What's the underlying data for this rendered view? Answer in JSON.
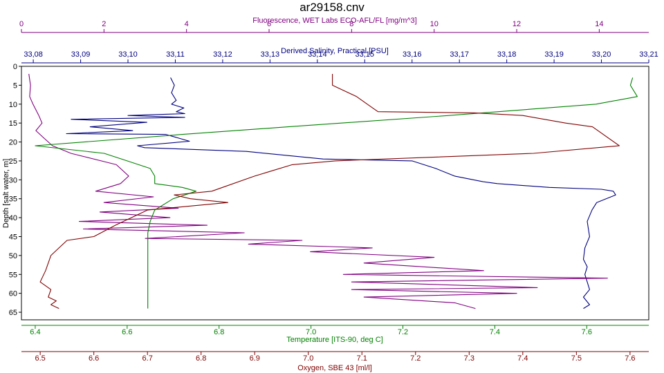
{
  "chart_data": {
    "type": "line",
    "title": "ar29158.cnv",
    "y_axis": {
      "label": "Depth [salt water, m]",
      "range": [
        0,
        67
      ],
      "inverted": true,
      "ticks": [
        0,
        5,
        10,
        15,
        20,
        25,
        30,
        35,
        40,
        45,
        50,
        55,
        60,
        65
      ]
    },
    "x_axes": [
      {
        "id": "fluorescence",
        "label": "Fluorescence, WET Labs ECO-AFL/FL [mg/m^3]",
        "position": "top",
        "range": [
          0,
          15.2
        ],
        "ticks": [
          0,
          2,
          4,
          6,
          8,
          10,
          12,
          14
        ],
        "tick_labels": [
          "0",
          "2",
          "4",
          "6",
          "8",
          "10",
          "12",
          "14"
        ],
        "color": "#800080"
      },
      {
        "id": "salinity",
        "label": "Derived Salinity, Practical [PSU]",
        "position": "top",
        "range": [
          33.0775,
          33.21
        ],
        "ticks": [
          33.08,
          33.09,
          33.1,
          33.11,
          33.12,
          33.13,
          33.14,
          33.15,
          33.16,
          33.17,
          33.18,
          33.19,
          33.2,
          33.21
        ],
        "tick_labels": [
          "33,08",
          "33,09",
          "33,10",
          "33,11",
          "33,12",
          "33,13",
          "33,14",
          "33,15",
          "33,16",
          "33,17",
          "33,18",
          "33,19",
          "33,20",
          "33,21"
        ],
        "color": "#000080"
      },
      {
        "id": "temperature",
        "label": "Temperature [ITS-90, deg C]",
        "position": "bottom",
        "range": [
          6.37,
          7.735
        ],
        "ticks": [
          6.4,
          6.6,
          6.8,
          7.0,
          7.2,
          7.4,
          7.6
        ],
        "tick_labels": [
          "6.4",
          "6.6",
          "6.8",
          "7.0",
          "7.2",
          "7.4",
          "7.6"
        ],
        "color": "#008000"
      },
      {
        "id": "oxygen",
        "label": "Oxygen, SBE 43 [ml/l]",
        "position": "bottom",
        "range": [
          6.465,
          7.635
        ],
        "ticks": [
          6.5,
          6.6,
          6.7,
          6.8,
          6.9,
          7.0,
          7.1,
          7.2,
          7.3,
          7.4,
          7.5,
          7.6
        ],
        "tick_labels": [
          "6.5",
          "6.6",
          "6.7",
          "6.8",
          "6.9",
          "7.0",
          "7.1",
          "7.2",
          "7.3",
          "7.4",
          "7.5",
          "7.6"
        ],
        "color": "#800000"
      }
    ],
    "series": [
      {
        "axis": "salinity",
        "color": "#000080",
        "x": [
          33.109,
          33.1098,
          33.1092,
          33.1102,
          33.1092,
          33.1118,
          33.1102,
          33.112,
          33.1,
          33.112,
          33.088,
          33.104,
          33.092,
          33.101,
          33.087,
          33.108,
          33.113,
          33.102,
          33.1035,
          33.125,
          33.1412,
          33.16,
          33.165,
          33.169,
          33.175,
          33.178,
          33.189,
          33.2,
          33.2025,
          33.203,
          33.199,
          33.198,
          33.197,
          33.1975,
          33.1965,
          33.1962,
          33.197,
          33.1965,
          33.197,
          33.1975,
          33.1962,
          33.1975,
          33.1962
        ],
        "y": [
          3,
          5,
          7,
          9,
          10,
          11,
          12,
          12.5,
          13,
          13.5,
          14,
          14.8,
          16,
          17,
          17.8,
          18,
          19.8,
          21,
          21.5,
          22.5,
          24.5,
          25,
          27,
          29,
          30.5,
          31,
          32,
          32.5,
          33,
          34,
          36,
          38,
          41,
          45,
          48,
          51,
          53,
          55,
          57,
          59,
          61,
          63,
          64
        ]
      },
      {
        "axis": "fluorescence",
        "color": "#800080",
        "x": [
          0.18,
          0.22,
          0.2,
          0.28,
          0.42,
          0.5,
          0.35,
          0.55,
          0.75,
          1.2,
          2.3,
          2.6,
          2.4,
          1.8,
          3.2,
          2.0,
          3.8,
          1.9,
          3.6,
          1.4,
          4.5,
          1.5,
          5.4,
          3.0,
          6.8,
          5.5,
          8.5,
          7.0,
          10.0,
          8.3,
          11.2,
          7.8,
          14.2,
          8.0,
          12.5,
          8.0,
          12.0,
          8.3,
          10.5,
          11.0
        ],
        "y": [
          2,
          5,
          8,
          10,
          13,
          15,
          17,
          19,
          21,
          23,
          26,
          29,
          31,
          33,
          34.5,
          36,
          37.5,
          38.5,
          40,
          41,
          42,
          43,
          44,
          45.5,
          46,
          47,
          48,
          49,
          50.5,
          52,
          54,
          55,
          56,
          57,
          58.5,
          59,
          60,
          61,
          62.5,
          64
        ]
      },
      {
        "axis": "temperature",
        "color": "#008000",
        "x": [
          7.7,
          7.695,
          7.71,
          7.62,
          7.3,
          6.95,
          6.72,
          6.4,
          6.55,
          6.6,
          6.65,
          6.66,
          6.66,
          6.72,
          6.75,
          6.7,
          6.66,
          6.65,
          6.645,
          6.645,
          6.645,
          6.645,
          6.645
        ],
        "y": [
          3,
          5,
          8,
          10,
          13,
          16,
          18,
          21,
          23,
          25,
          27,
          29,
          31,
          32,
          33,
          35,
          38,
          41,
          44,
          48,
          52,
          58,
          64
        ]
      },
      {
        "axis": "oxygen",
        "color": "#800000",
        "x": [
          7.045,
          7.045,
          7.09,
          7.11,
          7.12,
          7.13,
          7.31,
          7.4,
          7.48,
          7.53,
          7.58,
          7.42,
          7.05,
          6.97,
          6.9,
          6.84,
          6.82,
          6.75,
          6.78,
          6.85,
          6.7,
          6.64,
          6.6,
          6.55,
          6.52,
          6.51,
          6.5,
          6.52,
          6.515,
          6.53,
          6.52,
          6.535
        ],
        "y": [
          2,
          5,
          8,
          10,
          11,
          12,
          12.3,
          13,
          15,
          16,
          21,
          23,
          25,
          26,
          29,
          32,
          33,
          34,
          35,
          36,
          38,
          42,
          45,
          46,
          50,
          54,
          57,
          59,
          61,
          62,
          63,
          64
        ]
      }
    ]
  }
}
